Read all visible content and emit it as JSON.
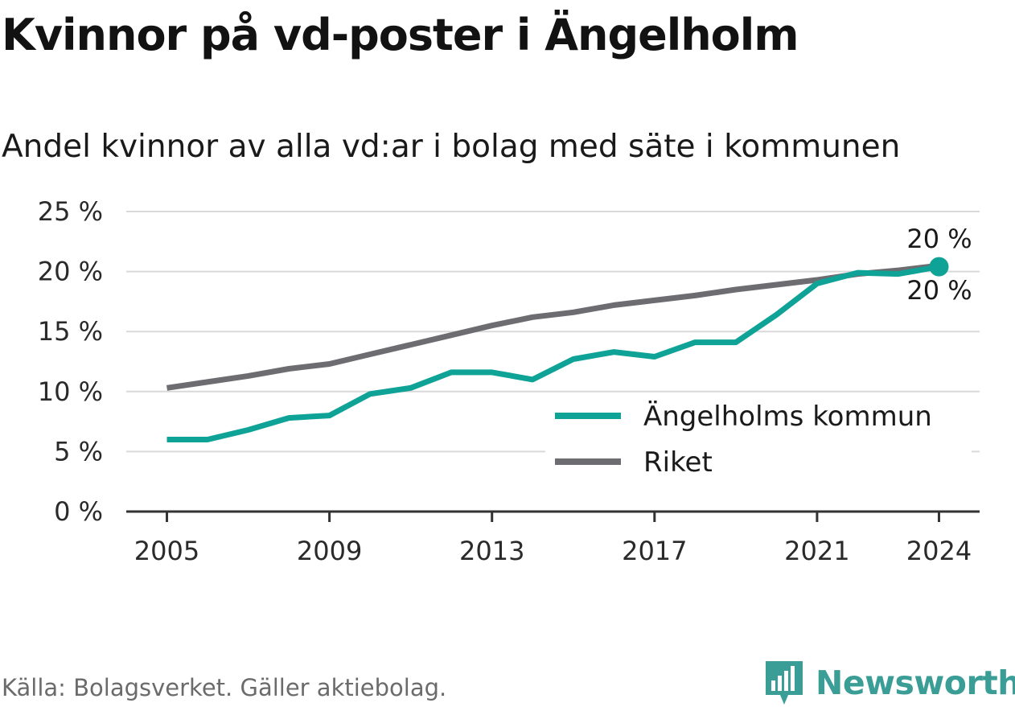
{
  "title": "Kvinnor på vd-poster i Ängelholm",
  "subtitle": "Andel kvinnor av alla vd:ar i bolag med säte i kommunen",
  "source": "Källa: Bolagsverket. Gäller aktiebolag.",
  "brand": {
    "name": "Newsworthy",
    "icon": "newsworthy-logo-icon",
    "color": "#3a9e97"
  },
  "colors": {
    "kommun": "#0fa397",
    "riket": "#6d6c70",
    "grid": "#d9d9d9",
    "axis": "#333333"
  },
  "chart_data": {
    "type": "line",
    "x": [
      2005,
      2006,
      2007,
      2008,
      2009,
      2010,
      2011,
      2012,
      2013,
      2014,
      2015,
      2016,
      2017,
      2018,
      2019,
      2020,
      2021,
      2022,
      2023,
      2024
    ],
    "xticks": [
      2005,
      2009,
      2013,
      2017,
      2021,
      2024
    ],
    "xtick_labels": [
      "2005",
      "2009",
      "2013",
      "2017",
      "2021",
      "2024"
    ],
    "yticks": [
      0,
      5,
      10,
      15,
      20,
      25
    ],
    "ytick_labels": [
      "0 %",
      "5 %",
      "10 %",
      "15 %",
      "20 %",
      "25 %"
    ],
    "ylim": [
      0,
      25
    ],
    "xlim": [
      2004,
      2025
    ],
    "grid": true,
    "legend_position": "bottom-right",
    "series": [
      {
        "name": "Ängelholms kommun",
        "key": "kommun",
        "values": [
          6.0,
          6.0,
          6.8,
          7.8,
          8.0,
          9.8,
          10.3,
          11.6,
          11.6,
          11.0,
          12.7,
          13.3,
          12.9,
          14.1,
          14.1,
          16.4,
          19.0,
          19.9,
          19.8,
          20.4
        ],
        "end_label": "20 %"
      },
      {
        "name": "Riket",
        "key": "riket",
        "values": [
          10.3,
          10.8,
          11.3,
          11.9,
          12.3,
          13.1,
          13.9,
          14.7,
          15.5,
          16.2,
          16.6,
          17.2,
          17.6,
          18.0,
          18.5,
          18.9,
          19.3,
          19.8,
          20.1,
          20.5
        ],
        "end_label": "20 %"
      }
    ]
  }
}
